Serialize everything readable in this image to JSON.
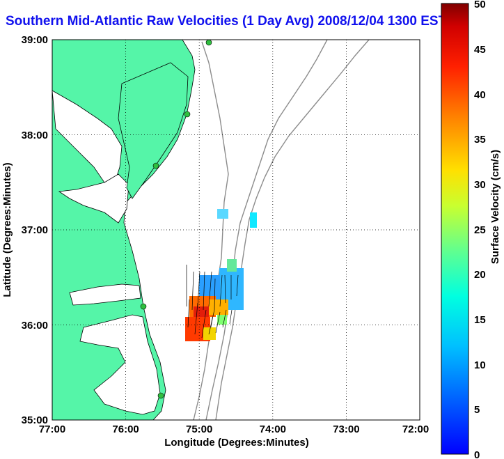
{
  "title": "Southern Mid-Atlantic Raw Velocities (1 Day Avg) 2008/12/04 1300 EST",
  "map": {
    "x_ticks": [
      "77:00",
      "76:00",
      "75:00",
      "74:00",
      "73:00",
      "72:00"
    ],
    "y_ticks": [
      "39:00",
      "38:00",
      "37:00",
      "36:00",
      "35:00"
    ],
    "xlabel": "Longitude (Degrees:Minutes)",
    "ylabel": "Latitude (Degrees:Minutes)",
    "lon_range": [
      -77,
      -72
    ],
    "lat_range": [
      35,
      39
    ],
    "grid": "dotted",
    "land_color": "#55f5a8",
    "water_color": "#ffffff",
    "bathymetry_color": "#8c8c8c"
  },
  "colorbar": {
    "label": "Surface Velocity (cm/s)",
    "ticks": [
      "0",
      "5",
      "10",
      "15",
      "20",
      "25",
      "30",
      "35",
      "40",
      "45",
      "50"
    ],
    "range": [
      0,
      50
    ],
    "colormap": "jet"
  }
}
